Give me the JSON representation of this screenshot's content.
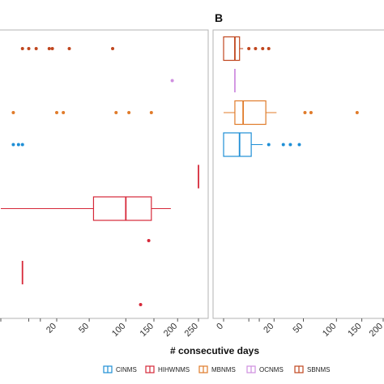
{
  "chart_data": {
    "type": "box",
    "orientation": "horizontal",
    "xlabel": "# consecutive days",
    "legend": {
      "placement": "bottom",
      "entries": [
        {
          "key": "CINMS",
          "label": "CINMS",
          "color": "#1f8fd6"
        },
        {
          "key": "HIHWNMS",
          "label": "HIHWNMS",
          "color": "#d62839"
        },
        {
          "key": "MBNMS",
          "label": "MBNMS",
          "color": "#e07b2a"
        },
        {
          "key": "OCNMS",
          "label": "OCNMS",
          "color": "#cf8fe0"
        },
        {
          "key": "SBNMS",
          "label": "SBNMS",
          "color": "#c0461e"
        }
      ]
    },
    "panels": [
      {
        "title": "",
        "xscale": "sqrt",
        "xlim": [
          0,
          275
        ],
        "xticks": [
          0,
          5,
          10,
          20,
          50,
          100,
          150,
          200,
          250
        ],
        "xtick_labels": [
          "",
          "",
          "",
          "20",
          "50",
          "100",
          "150",
          "200",
          "250"
        ],
        "grid": false,
        "rows": [
          {
            "series": "SBNMS",
            "color": "#c0461e",
            "box": null,
            "outliers": [
              3,
              5,
              8,
              15,
              17,
              30,
              80
            ]
          },
          {
            "series": "OCNMS",
            "color": "#cf8fe0",
            "box": null,
            "outliers": [
              188
            ]
          },
          {
            "series": "MBNMS",
            "color": "#e07b2a",
            "box": null,
            "outliers": [
              1,
              20,
              25,
              85,
              105,
              145
            ]
          },
          {
            "series": "CINMS",
            "color": "#1f8fd6",
            "box": null,
            "outliers": [
              1,
              2,
              3
            ]
          },
          {
            "series": "HIHWNMS",
            "color": "#d62839",
            "box": {
              "min": 250,
              "q1": 250,
              "median": 250,
              "q3": 250,
              "max": 250
            },
            "outliers": []
          },
          {
            "series": "HIHWNMS",
            "color": "#d62839",
            "box": {
              "min": 0,
              "q1": 55,
              "median": 100,
              "q3": 145,
              "max": 185
            },
            "outliers": []
          },
          {
            "series": "HIHWNMS",
            "color": "#d62839",
            "box": null,
            "outliers": [
              140
            ]
          },
          {
            "series": "HIHWNMS",
            "color": "#d62839",
            "box": {
              "min": 3,
              "q1": 3,
              "median": 3,
              "q3": 3,
              "max": 3
            },
            "outliers": []
          },
          {
            "series": "HIHWNMS",
            "color": "#d62839",
            "box": null,
            "outliers": [
              125
            ]
          }
        ]
      },
      {
        "title": "B",
        "xscale": "sqrt",
        "xlim": [
          0,
          225
        ],
        "xticks": [
          0,
          5,
          10,
          20,
          50,
          100,
          150,
          200
        ],
        "xtick_labels": [
          "0",
          "",
          "",
          "20",
          "50",
          "100",
          "150",
          "200"
        ],
        "grid": false,
        "rows": [
          {
            "series": "SBNMS",
            "color": "#c0461e",
            "box": {
              "min": 0,
              "q1": 0,
              "median": 1,
              "q3": 2,
              "max": 3
            },
            "outliers": [
              5,
              8,
              12,
              16
            ]
          },
          {
            "series": "OCNMS",
            "color": "#cf8fe0",
            "box": {
              "min": 1,
              "q1": 1,
              "median": 1,
              "q3": 1,
              "max": 1
            },
            "outliers": []
          },
          {
            "series": "MBNMS",
            "color": "#e07b2a",
            "box": {
              "min": 0,
              "q1": 1,
              "median": 3,
              "q3": 14,
              "max": 22
            },
            "outliers": [
              52,
              60,
              140
            ]
          },
          {
            "series": "CINMS",
            "color": "#1f8fd6",
            "box": {
              "min": 0,
              "q1": 0,
              "median": 2,
              "q3": 6,
              "max": 12
            },
            "outliers": [
              16,
              28,
              35,
              45
            ]
          }
        ]
      }
    ]
  }
}
